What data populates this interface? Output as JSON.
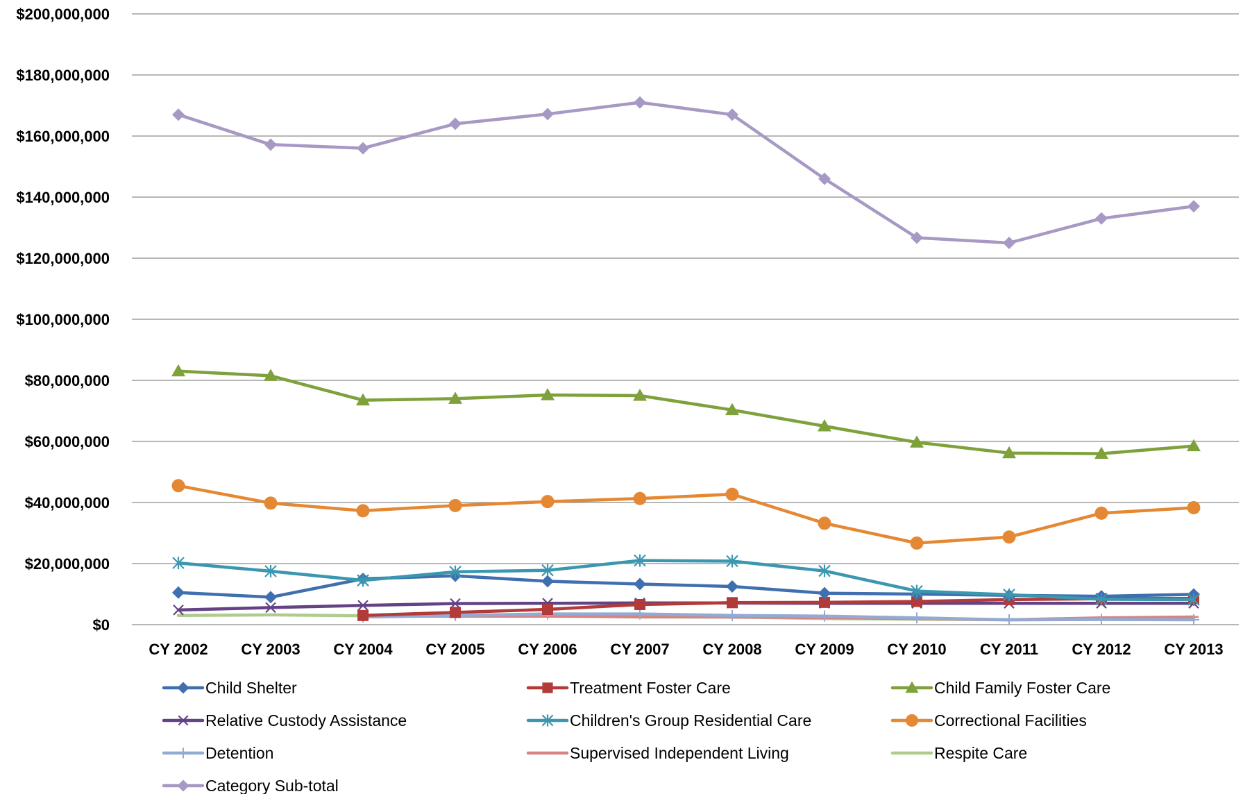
{
  "chart_data": {
    "type": "line",
    "title": "",
    "xlabel": "",
    "ylabel": "",
    "categories": [
      "CY 2002",
      "CY 2003",
      "CY 2004",
      "CY 2005",
      "CY 2006",
      "CY 2007",
      "CY 2008",
      "CY 2009",
      "CY 2010",
      "CY 2011",
      "CY 2012",
      "CY 2013"
    ],
    "ylim": [
      0,
      200000000
    ],
    "yticks": [
      0,
      20000000,
      40000000,
      60000000,
      80000000,
      100000000,
      120000000,
      140000000,
      160000000,
      180000000,
      200000000
    ],
    "ytick_labels": [
      "$0",
      "$20,000,000",
      "$40,000,000",
      "$60,000,000",
      "$80,000,000",
      "$100,000,000",
      "$120,000,000",
      "$140,000,000",
      "$160,000,000",
      "$180,000,000",
      "$200,000,000"
    ],
    "grid": true,
    "legend_position": "bottom",
    "series": [
      {
        "name": "Child Shelter",
        "color": "#3F6FAF",
        "marker": "diamond",
        "values": [
          10500000,
          9000000,
          15000000,
          16000000,
          14200000,
          13300000,
          12500000,
          10300000,
          10000000,
          9600000,
          9300000,
          9900000
        ]
      },
      {
        "name": "Treatment Foster Care",
        "color": "#B23B39",
        "marker": "square",
        "values": [
          null,
          null,
          3000000,
          4000000,
          5000000,
          6600000,
          7200000,
          7300000,
          7600000,
          8200000,
          8500000,
          8600000
        ]
      },
      {
        "name": "Child Family Foster Care",
        "color": "#7EA13C",
        "marker": "triangle",
        "values": [
          83000000,
          81500000,
          73500000,
          74000000,
          75200000,
          75000000,
          70300000,
          65000000,
          59700000,
          56200000,
          56000000,
          58500000
        ]
      },
      {
        "name": "Relative Custody Assistance",
        "color": "#644385",
        "marker": "x",
        "values": [
          4800000,
          5600000,
          6300000,
          6900000,
          7000000,
          7100000,
          7100000,
          7000000,
          7000000,
          7000000,
          7000000,
          7000000
        ]
      },
      {
        "name": "Children's Group Residential Care",
        "color": "#3B97AF",
        "marker": "asterisk",
        "values": [
          20200000,
          17500000,
          14500000,
          17300000,
          17800000,
          21000000,
          20800000,
          17600000,
          11000000,
          9800000,
          8300000,
          8200000
        ]
      },
      {
        "name": "Correctional Facilities",
        "color": "#E58834",
        "marker": "circle",
        "values": [
          45500000,
          39800000,
          37300000,
          39000000,
          40300000,
          41300000,
          42700000,
          33200000,
          26700000,
          28700000,
          36500000,
          38300000
        ]
      },
      {
        "name": "Detention",
        "color": "#93ABD2",
        "marker": "plus",
        "values": [
          null,
          null,
          2500000,
          3000000,
          3500000,
          3500000,
          3000000,
          2800000,
          2200000,
          1600000,
          1700000,
          1600000
        ]
      },
      {
        "name": "Supervised Independent Living",
        "color": "#D68484",
        "marker": "dash",
        "values": [
          null,
          null,
          2700000,
          2800000,
          2800000,
          2600000,
          2500000,
          2300000,
          2000000,
          1600000,
          2200000,
          2500000
        ]
      },
      {
        "name": "Respite Care",
        "color": "#AFCB8E",
        "marker": "none",
        "values": [
          3000000,
          3200000,
          2900000,
          3100000,
          2900000,
          2500000,
          2500000,
          2000000,
          1800000,
          1600000,
          1700000,
          1700000
        ]
      },
      {
        "name": "Category Sub-total",
        "color": "#A799C4",
        "marker": "diamond",
        "values": [
          167000000,
          157200000,
          156000000,
          164000000,
          167200000,
          171000000,
          167000000,
          146000000,
          126700000,
          125000000,
          133000000,
          137000000
        ]
      }
    ]
  }
}
